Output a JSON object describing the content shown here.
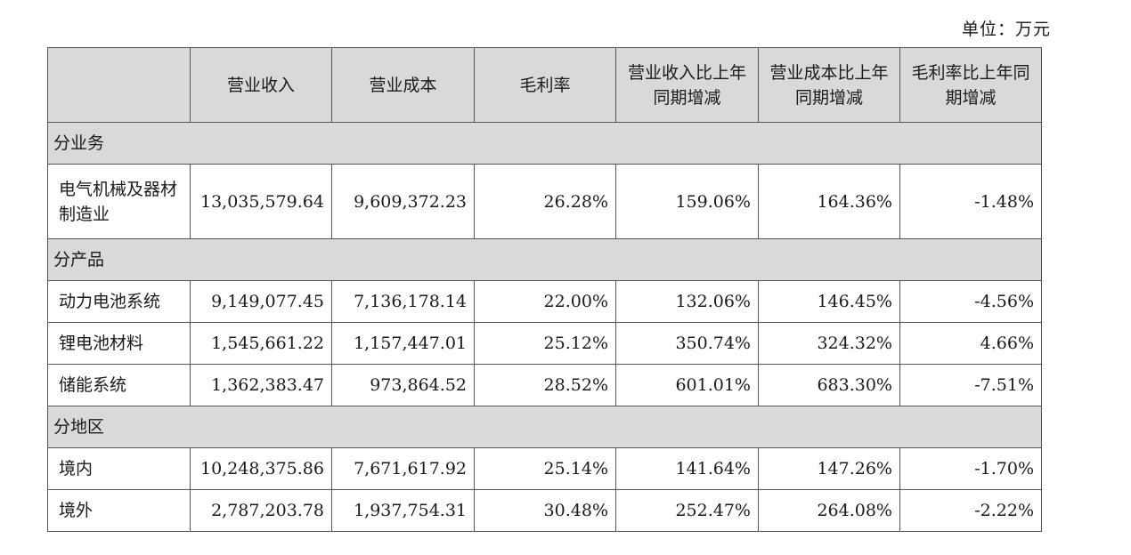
{
  "unit_label": "单位：万元",
  "headers": [
    "",
    "营业收入",
    "营业成本",
    "毛利率",
    "营业收入比上年同期增减",
    "营业成本比上年同期增减",
    "毛利率比上年同期增减"
  ],
  "sections": [
    {
      "title": "分业务",
      "rows": [
        [
          "电气机械及器材制造业",
          "13,035,579.64",
          "9,609,372.23",
          "26.28%",
          "159.06%",
          "164.36%",
          "-1.48%"
        ]
      ]
    },
    {
      "title": "分产品",
      "rows": [
        [
          "动力电池系统",
          "9,149,077.45",
          "7,136,178.14",
          "22.00%",
          "132.06%",
          "146.45%",
          "-4.56%"
        ],
        [
          "锂电池材料",
          "1,545,661.22",
          "1,157,447.01",
          "25.12%",
          "350.74%",
          "324.32%",
          "4.66%"
        ],
        [
          "储能系统",
          "1,362,383.47",
          "973,864.52",
          "28.52%",
          "601.01%",
          "683.30%",
          "-7.51%"
        ]
      ]
    },
    {
      "title": "分地区",
      "rows": [
        [
          "境内",
          "10,248,375.86",
          "7,671,617.92",
          "25.14%",
          "141.64%",
          "147.26%",
          "-1.70%"
        ],
        [
          "境外",
          "2,787,203.78",
          "1,937,754.31",
          "30.48%",
          "252.47%",
          "264.08%",
          "-2.22%"
        ]
      ]
    }
  ]
}
